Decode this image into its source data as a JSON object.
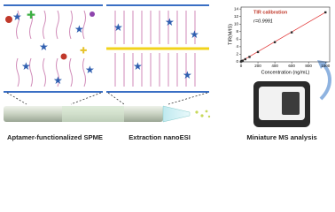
{
  "labels": {
    "spme": "Aptamer-functionalized SPME",
    "nanoesi": "Extraction nanoESI",
    "ms": "Miniature MS analysis"
  },
  "chart_data": {
    "type": "scatter",
    "title": "TIR calibration",
    "annotation": "r=0.9991",
    "x_label": "Concentration (ng/mL)",
    "y_label": "TIR(M/IS)",
    "x": [
      0,
      10,
      20,
      50,
      100,
      200,
      400,
      600,
      1000
    ],
    "values": [
      0.1,
      0.2,
      0.3,
      0.7,
      1.3,
      2.6,
      5.2,
      7.8,
      13.1
    ],
    "color": "#2b2b2b",
    "fit_color": "#e03030",
    "xlim": [
      0,
      1050
    ],
    "ylim": [
      0,
      14.5
    ],
    "xticks": [
      0,
      200,
      400,
      600,
      800,
      1000
    ],
    "yticks": [
      0,
      2,
      4,
      6,
      8,
      10,
      12,
      14
    ]
  }
}
